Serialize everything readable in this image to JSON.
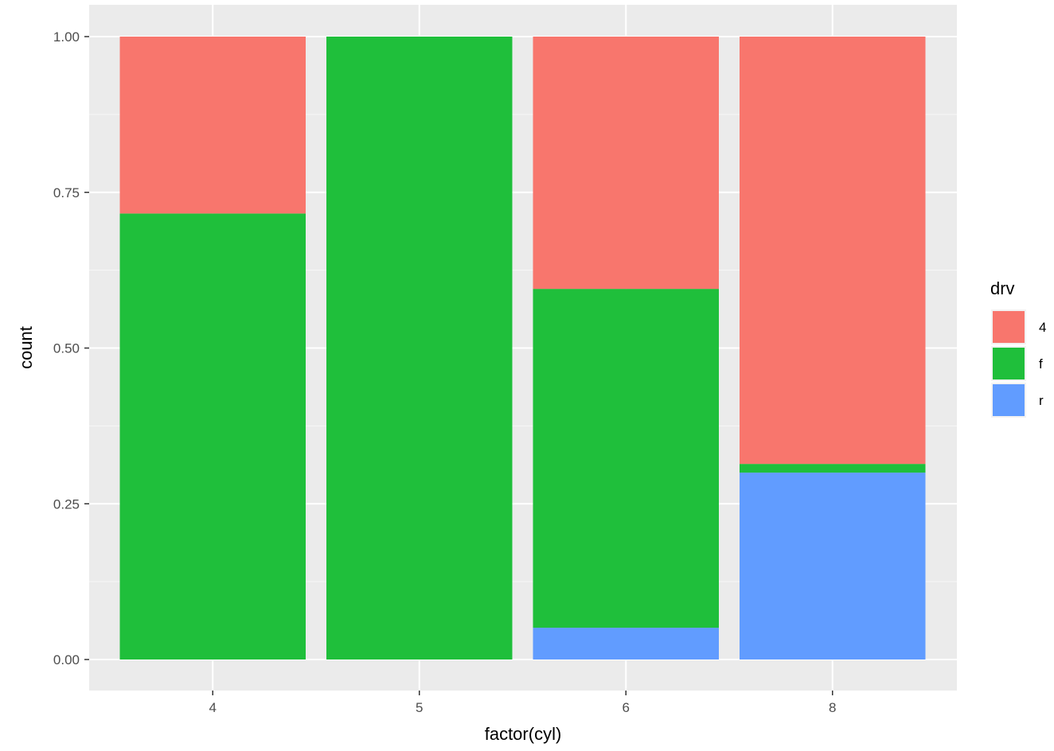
{
  "chart_data": {
    "type": "bar",
    "stacked": true,
    "position": "fill",
    "title": "",
    "xlabel": "factor(cyl)",
    "ylabel": "count",
    "categories": [
      "4",
      "5",
      "6",
      "8"
    ],
    "series": [
      {
        "name": "4",
        "color": "#F8766D",
        "values": [
          0.284,
          0.0,
          0.405,
          0.686
        ]
      },
      {
        "name": "f",
        "color": "#1FBF3B",
        "values": [
          0.716,
          1.0,
          0.544,
          0.014
        ]
      },
      {
        "name": "r",
        "color": "#619CFF",
        "values": [
          0.0,
          0.0,
          0.051,
          0.3
        ]
      }
    ],
    "ylim": [
      0,
      1
    ],
    "yticks": [
      0.0,
      0.25,
      0.5,
      0.75,
      1.0
    ],
    "ytick_labels": [
      "0.00",
      "0.25",
      "0.50",
      "0.75",
      "1.00"
    ],
    "grid": true,
    "legend": {
      "title": "drv",
      "placement": "right"
    },
    "panel_background": "#EBEBEB",
    "grid_color": "#FFFFFF"
  }
}
